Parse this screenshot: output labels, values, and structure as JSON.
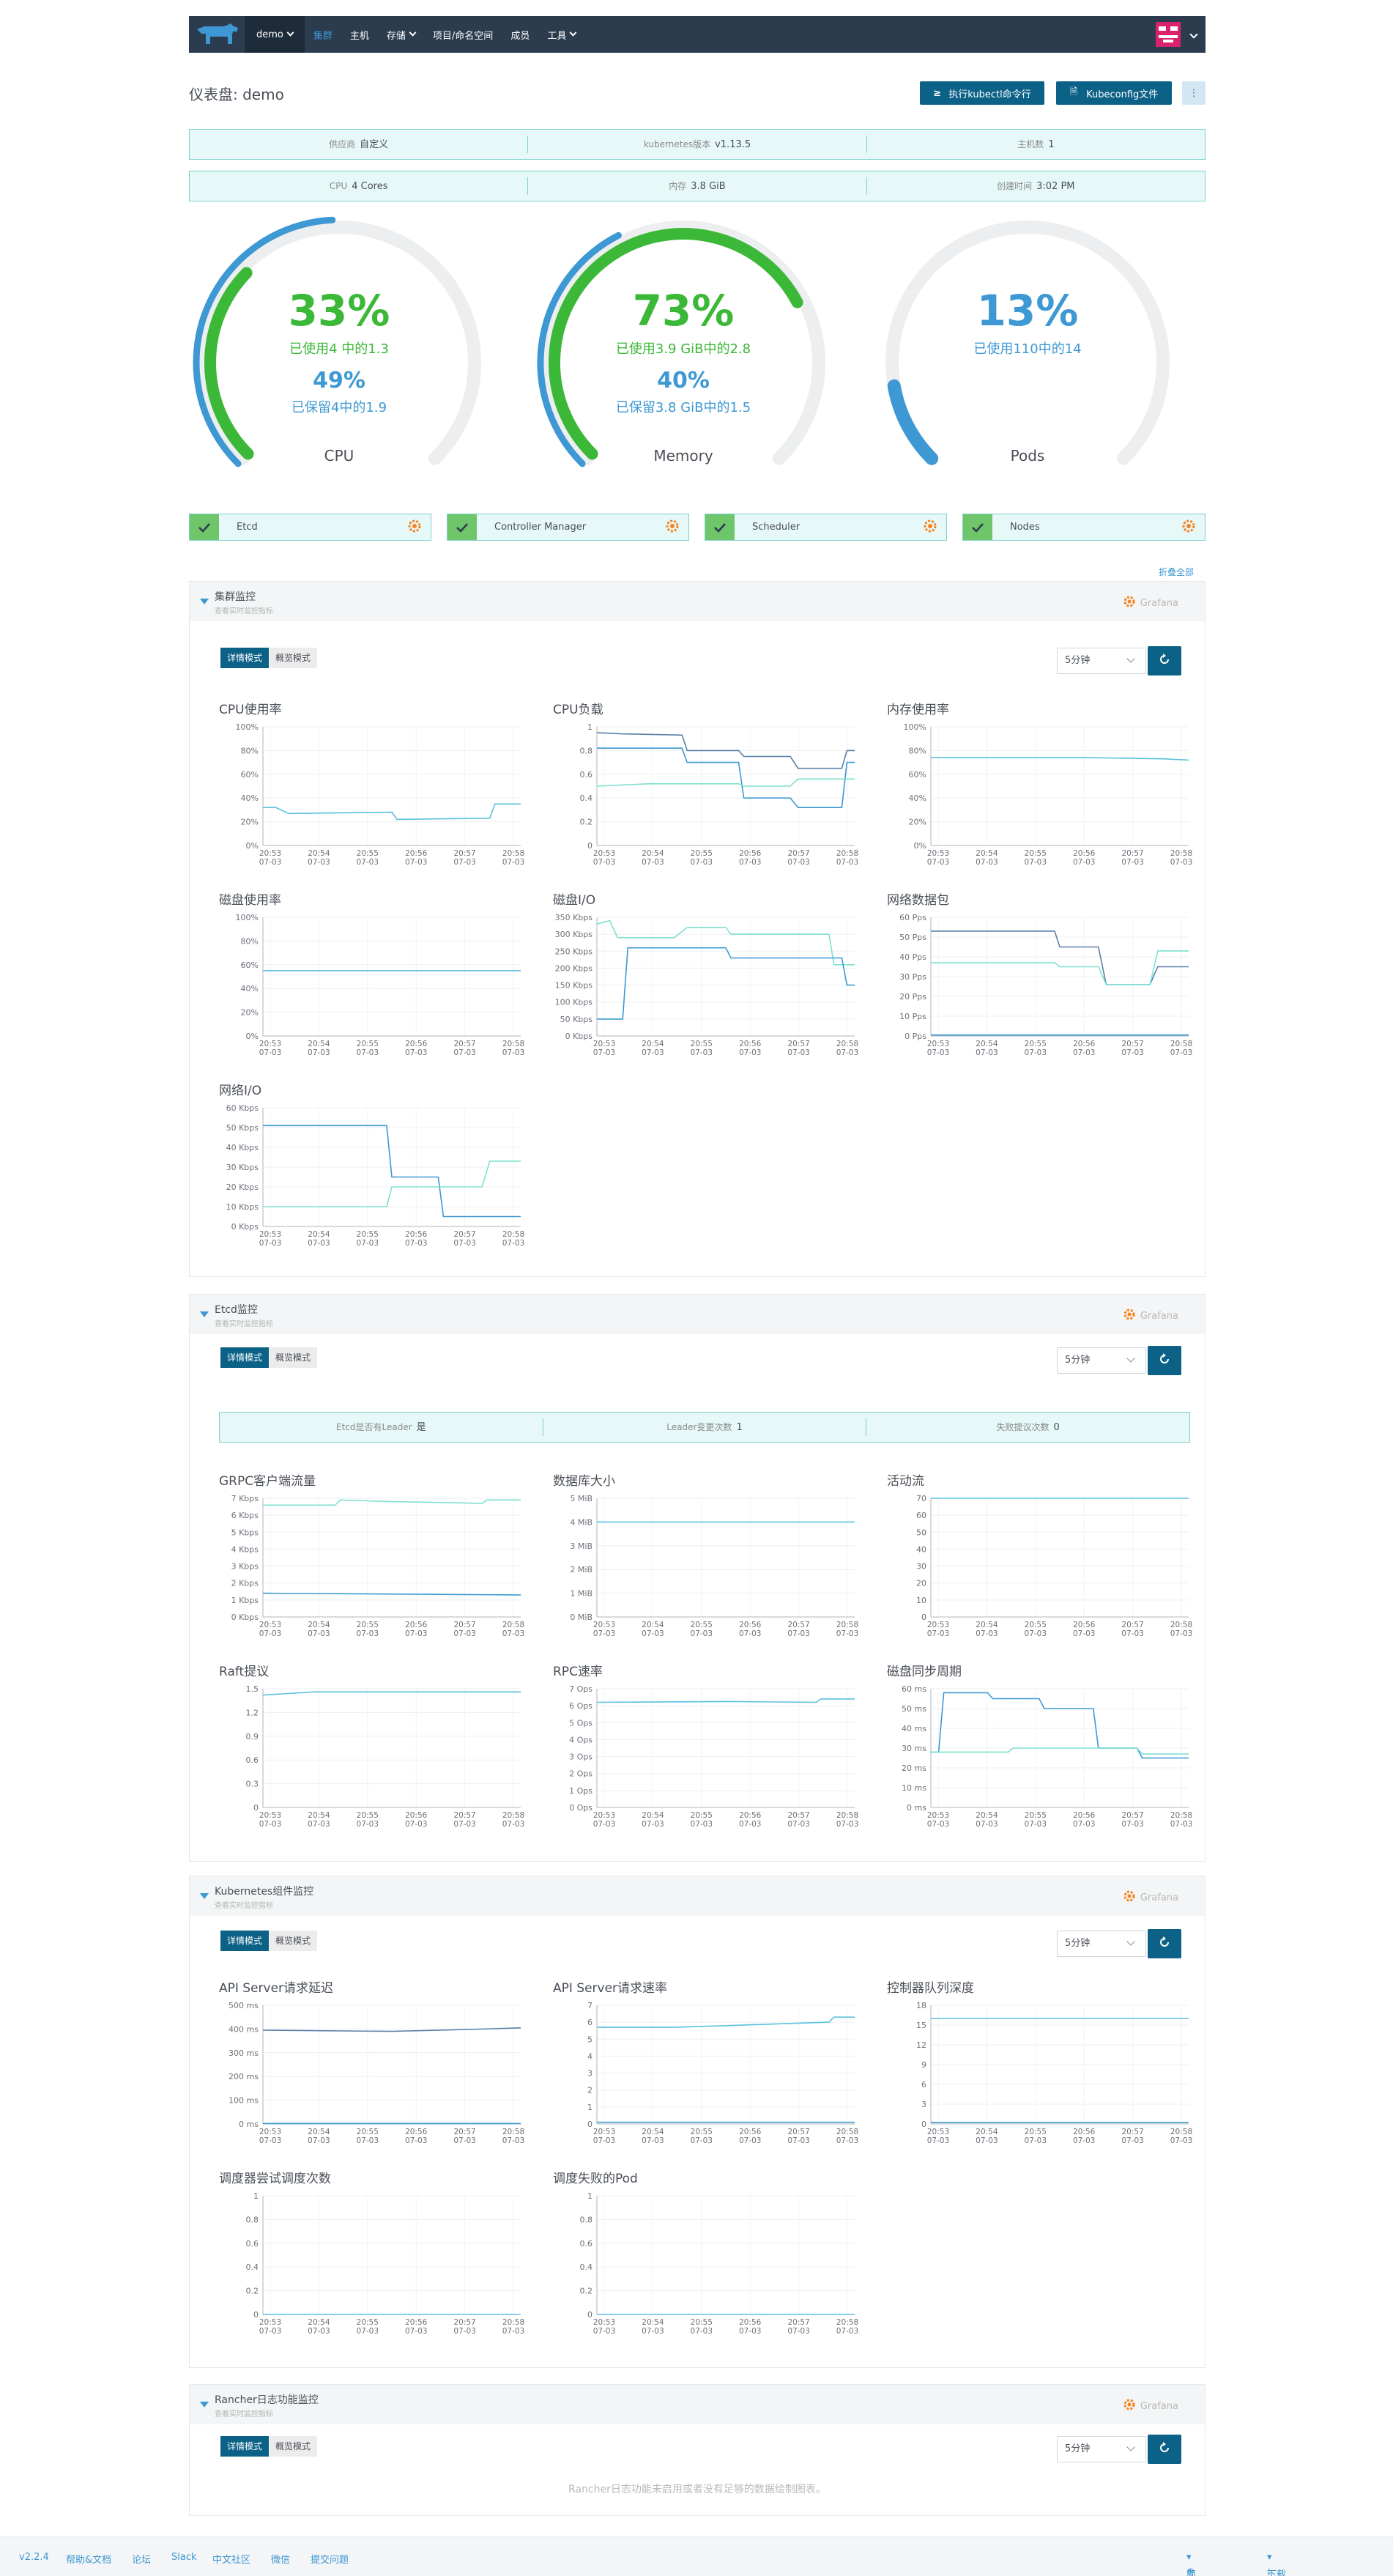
{
  "nav": {
    "project": "demo",
    "items": [
      {
        "label": "集群",
        "active": true
      },
      {
        "label": "主机"
      },
      {
        "label": "存储",
        "dropdown": true
      },
      {
        "label": "项目/命名空间"
      },
      {
        "label": "成员"
      },
      {
        "label": "工具",
        "dropdown": true
      }
    ]
  },
  "header": {
    "title": "仪表盘: demo",
    "kubectl_btn": "执行kubectl命令行",
    "kubeconfig_btn": "Kubeconfig文件",
    "more_btn": "⋮"
  },
  "info_row1": [
    {
      "label": "供应商",
      "value": "自定义"
    },
    {
      "label": "kubernetes版本",
      "value": "v1.13.5"
    },
    {
      "label": "主机数",
      "value": "1"
    }
  ],
  "info_row2": [
    {
      "label": "CPU",
      "value": "4 Cores"
    },
    {
      "label": "内存",
      "value": "3.8 GiB"
    },
    {
      "label": "创建时间",
      "value": "3:02 PM"
    }
  ],
  "gauges": [
    {
      "name": "CPU",
      "pct": "33%",
      "used": "已使用4 中的1.3",
      "reserved_pct": "49%",
      "reserved": "已保留4中的1.9",
      "used_value": 0.33,
      "reserved_value": 0.49
    },
    {
      "name": "Memory",
      "pct": "73%",
      "used": "已使用3.9 GiB中的2.8",
      "reserved_pct": "40%",
      "reserved": "已保留3.8 GiB中的1.5",
      "used_value": 0.73,
      "reserved_value": 0.4
    },
    {
      "name": "Pods",
      "pct": "13%",
      "used": "已使用110中的14",
      "used_value": 0.13
    }
  ],
  "components": [
    "Etcd",
    "Controller Manager",
    "Scheduler",
    "Nodes"
  ],
  "collapse_all": "折叠全部",
  "common": {
    "grafana": "Grafana",
    "detail_mode": "详情模式",
    "overview_mode": "概览模式",
    "interval": "5分钟",
    "subtitle": "查看实时监控指标"
  },
  "time_ticks": [
    "20:53\n07-03",
    "20:54\n07-03",
    "20:55\n07-03",
    "20:56\n07-03",
    "20:57\n07-03",
    "20:58\n07-03"
  ],
  "sections": {
    "cluster": {
      "title": "集群监控"
    },
    "etcd": {
      "title": "Etcd监控",
      "stats": [
        {
          "label": "Etcd是否有Leader",
          "value": "是"
        },
        {
          "label": "Leader变更次数",
          "value": "1"
        },
        {
          "label": "失败提议次数",
          "value": "0"
        }
      ]
    },
    "k8s": {
      "title": "Kubernetes组件监控"
    },
    "logging": {
      "title": "Rancher日志功能监控",
      "empty": "Rancher日志功能未启用或者没有足够的数据绘制图表。"
    }
  },
  "chart_data": [
    {
      "type": "line",
      "title": "CPU使用率",
      "yticks": [
        "100%",
        "80%",
        "60%",
        "40%",
        "20%",
        "0%"
      ],
      "ylim": [
        0,
        100
      ],
      "series": [
        {
          "color": "#5bc0de",
          "values": [
            [
              0,
              32
            ],
            [
              0.05,
              32
            ],
            [
              0.1,
              27
            ],
            [
              0.5,
              28
            ],
            [
              0.52,
              22
            ],
            [
              0.88,
              23
            ],
            [
              0.9,
              35
            ],
            [
              1,
              35
            ]
          ]
        }
      ]
    },
    {
      "type": "line",
      "title": "CPU负载",
      "yticks": [
        "1",
        "0.8",
        "0.6",
        "0.4",
        "0.2",
        "0"
      ],
      "ylim": [
        0,
        1
      ],
      "series": [
        {
          "color": "#5b7fa8",
          "values": [
            [
              0,
              0.95
            ],
            [
              0.1,
              0.94
            ],
            [
              0.33,
              0.93
            ],
            [
              0.35,
              0.8
            ],
            [
              0.55,
              0.8
            ],
            [
              0.57,
              0.75
            ],
            [
              0.75,
              0.75
            ],
            [
              0.78,
              0.65
            ],
            [
              0.95,
              0.65
            ],
            [
              0.97,
              0.8
            ],
            [
              1,
              0.8
            ]
          ]
        },
        {
          "color": "#3d98d3",
          "values": [
            [
              0,
              0.82
            ],
            [
              0.33,
              0.82
            ],
            [
              0.35,
              0.7
            ],
            [
              0.55,
              0.7
            ],
            [
              0.57,
              0.4
            ],
            [
              0.75,
              0.4
            ],
            [
              0.78,
              0.32
            ],
            [
              0.95,
              0.32
            ],
            [
              0.97,
              0.7
            ],
            [
              1,
              0.7
            ]
          ]
        },
        {
          "color": "#7fe0d0",
          "values": [
            [
              0,
              0.5
            ],
            [
              0.2,
              0.52
            ],
            [
              0.55,
              0.52
            ],
            [
              0.57,
              0.5
            ],
            [
              0.75,
              0.5
            ],
            [
              0.78,
              0.56
            ],
            [
              1,
              0.56
            ]
          ]
        }
      ]
    },
    {
      "type": "line",
      "title": "内存使用率",
      "yticks": [
        "100%",
        "80%",
        "60%",
        "40%",
        "20%",
        "0%"
      ],
      "ylim": [
        0,
        100
      ],
      "series": [
        {
          "color": "#5bc0de",
          "values": [
            [
              0,
              74
            ],
            [
              0.6,
              74
            ],
            [
              0.9,
              73
            ],
            [
              1,
              72
            ]
          ]
        }
      ]
    },
    {
      "type": "line",
      "title": "磁盘使用率",
      "yticks": [
        "100%",
        "80%",
        "60%",
        "40%",
        "20%",
        "0%"
      ],
      "ylim": [
        0,
        100
      ],
      "series": [
        {
          "color": "#5bc0de",
          "values": [
            [
              0,
              55
            ],
            [
              1,
              55
            ]
          ]
        }
      ]
    },
    {
      "type": "line",
      "title": "磁盘I/O",
      "yticks": [
        "350 Kbps",
        "300 Kbps",
        "250 Kbps",
        "200 Kbps",
        "150 Kbps",
        "100 Kbps",
        "50 Kbps",
        "0 Kbps"
      ],
      "ylim": [
        0,
        350
      ],
      "series": [
        {
          "color": "#7fe0d0",
          "values": [
            [
              0,
              330
            ],
            [
              0.05,
              340
            ],
            [
              0.08,
              290
            ],
            [
              0.3,
              290
            ],
            [
              0.35,
              320
            ],
            [
              0.5,
              320
            ],
            [
              0.52,
              300
            ],
            [
              0.9,
              300
            ],
            [
              0.92,
              210
            ],
            [
              1,
              210
            ]
          ]
        },
        {
          "color": "#3d98d3",
          "values": [
            [
              0,
              50
            ],
            [
              0.1,
              50
            ],
            [
              0.12,
              260
            ],
            [
              0.5,
              260
            ],
            [
              0.52,
              230
            ],
            [
              0.95,
              230
            ],
            [
              0.97,
              150
            ],
            [
              1,
              150
            ]
          ]
        }
      ]
    },
    {
      "type": "line",
      "title": "网络数据包",
      "yticks": [
        "60 Pps",
        "50 Pps",
        "40 Pps",
        "30 Pps",
        "20 Pps",
        "10 Pps",
        "0 Pps"
      ],
      "ylim": [
        0,
        60
      ],
      "series": [
        {
          "color": "#5b7fa8",
          "values": [
            [
              0,
              53
            ],
            [
              0.48,
              53
            ],
            [
              0.5,
              45
            ],
            [
              0.65,
              45
            ],
            [
              0.68,
              26
            ],
            [
              0.85,
              26
            ],
            [
              0.88,
              35
            ],
            [
              1,
              35
            ]
          ]
        },
        {
          "color": "#7fe0d0",
          "values": [
            [
              0,
              37
            ],
            [
              0.48,
              37
            ],
            [
              0.5,
              35
            ],
            [
              0.65,
              35
            ],
            [
              0.68,
              26
            ],
            [
              0.85,
              26
            ],
            [
              0.88,
              43
            ],
            [
              1,
              43
            ]
          ]
        },
        {
          "color": "#3d98d3",
          "values": [
            [
              0,
              0.5
            ],
            [
              1,
              0.5
            ]
          ]
        }
      ]
    },
    {
      "type": "line",
      "title": "网络I/O",
      "yticks": [
        "60 Kbps",
        "50 Kbps",
        "40 Kbps",
        "30 Kbps",
        "20 Kbps",
        "10 Kbps",
        "0 Kbps"
      ],
      "ylim": [
        0,
        60
      ],
      "series": [
        {
          "color": "#3d98d3",
          "values": [
            [
              0,
              51
            ],
            [
              0.48,
              51
            ],
            [
              0.5,
              25
            ],
            [
              0.68,
              25
            ],
            [
              0.7,
              5
            ],
            [
              1,
              5
            ]
          ]
        },
        {
          "color": "#7fe0d0",
          "values": [
            [
              0,
              10
            ],
            [
              0.48,
              10
            ],
            [
              0.5,
              20
            ],
            [
              0.85,
              20
            ],
            [
              0.88,
              33
            ],
            [
              1,
              33
            ]
          ]
        }
      ]
    },
    {
      "type": "line",
      "title": "GRPC客户端流量",
      "yticks": [
        "7 Kbps",
        "6 Kbps",
        "5 Kbps",
        "4 Kbps",
        "3 Kbps",
        "2 Kbps",
        "1 Kbps",
        "0 Kbps"
      ],
      "ylim": [
        0,
        7
      ],
      "series": [
        {
          "color": "#7fe0d0",
          "values": [
            [
              0,
              6.6
            ],
            [
              0.28,
              6.6
            ],
            [
              0.3,
              6.9
            ],
            [
              0.5,
              6.8
            ],
            [
              0.85,
              6.7
            ],
            [
              0.87,
              6.9
            ],
            [
              1,
              6.9
            ]
          ]
        },
        {
          "color": "#3d98d3",
          "values": [
            [
              0,
              1.4
            ],
            [
              1,
              1.3
            ]
          ]
        }
      ]
    },
    {
      "type": "line",
      "title": "数据库大小",
      "yticks": [
        "5 MiB",
        "4 MiB",
        "3 MiB",
        "2 MiB",
        "1 MiB",
        "0 MiB"
      ],
      "ylim": [
        0,
        5
      ],
      "series": [
        {
          "color": "#5bc0de",
          "values": [
            [
              0,
              4
            ],
            [
              1,
              4
            ]
          ]
        }
      ]
    },
    {
      "type": "line",
      "title": "活动流",
      "yticks": [
        "70",
        "60",
        "50",
        "40",
        "30",
        "20",
        "10",
        "0"
      ],
      "ylim": [
        0,
        70
      ],
      "series": [
        {
          "color": "#5bc0de",
          "values": [
            [
              0,
              70
            ],
            [
              1,
              70
            ]
          ]
        }
      ]
    },
    {
      "type": "line",
      "title": "Raft提议",
      "yticks": [
        "1.5",
        "1.2",
        "0.9",
        "0.6",
        "0.3",
        "0"
      ],
      "ylim": [
        0,
        1.5
      ],
      "series": [
        {
          "color": "#5bc0de",
          "values": [
            [
              0,
              1.42
            ],
            [
              0.2,
              1.46
            ],
            [
              1,
              1.46
            ]
          ]
        }
      ]
    },
    {
      "type": "line",
      "title": "RPC速率",
      "yticks": [
        "7 Ops",
        "6 Ops",
        "5 Ops",
        "4 Ops",
        "3 Ops",
        "2 Ops",
        "1 Ops",
        "0 Ops"
      ],
      "ylim": [
        0,
        7
      ],
      "series": [
        {
          "color": "#5bc0de",
          "values": [
            [
              0,
              6.2
            ],
            [
              0.5,
              6.25
            ],
            [
              0.85,
              6.2
            ],
            [
              0.87,
              6.4
            ],
            [
              1,
              6.4
            ]
          ]
        }
      ]
    },
    {
      "type": "line",
      "title": "磁盘同步周期",
      "yticks": [
        "60 ms",
        "50 ms",
        "40 ms",
        "30 ms",
        "20 ms",
        "10 ms",
        "0 ms"
      ],
      "ylim": [
        0,
        60
      ],
      "series": [
        {
          "color": "#3d98d3",
          "values": [
            [
              0,
              28
            ],
            [
              0.03,
              28
            ],
            [
              0.05,
              58
            ],
            [
              0.22,
              58
            ],
            [
              0.24,
              55
            ],
            [
              0.42,
              55
            ],
            [
              0.44,
              50
            ],
            [
              0.63,
              50
            ],
            [
              0.65,
              30
            ],
            [
              0.8,
              30
            ],
            [
              0.82,
              25
            ],
            [
              1,
              25
            ]
          ]
        },
        {
          "color": "#7fe0d0",
          "values": [
            [
              0,
              28
            ],
            [
              0.3,
              28
            ],
            [
              0.32,
              30
            ],
            [
              0.8,
              30
            ],
            [
              0.82,
              27
            ],
            [
              1,
              27
            ]
          ]
        }
      ]
    },
    {
      "type": "line",
      "title": "API Server请求延迟",
      "yticks": [
        "500 ms",
        "400 ms",
        "300 ms",
        "200 ms",
        "100 ms",
        "0 ms"
      ],
      "ylim": [
        0,
        500
      ],
      "series": [
        {
          "color": "#5b7fa8",
          "values": [
            [
              0,
              395
            ],
            [
              0.5,
              390
            ],
            [
              0.8,
              398
            ],
            [
              1,
              405
            ]
          ]
        },
        {
          "color": "#3d98d3",
          "values": [
            [
              0,
              2
            ],
            [
              1,
              2
            ]
          ]
        }
      ]
    },
    {
      "type": "line",
      "title": "API Server请求速率",
      "yticks": [
        "7",
        "6",
        "5",
        "4",
        "3",
        "2",
        "1",
        "0"
      ],
      "ylim": [
        0,
        7
      ],
      "series": [
        {
          "color": "#5bc0de",
          "values": [
            [
              0,
              5.7
            ],
            [
              0.3,
              5.7
            ],
            [
              0.5,
              5.8
            ],
            [
              0.9,
              6
            ],
            [
              0.92,
              6.3
            ],
            [
              1,
              6.3
            ]
          ]
        },
        {
          "color": "#3d98d3",
          "values": [
            [
              0,
              0.1
            ],
            [
              1,
              0.1
            ]
          ]
        }
      ]
    },
    {
      "type": "line",
      "title": "控制器队列深度",
      "yticks": [
        "18",
        "15",
        "12",
        "9",
        "6",
        "3",
        "0"
      ],
      "ylim": [
        0,
        18
      ],
      "series": [
        {
          "color": "#5bc0de",
          "values": [
            [
              0,
              16
            ],
            [
              1,
              16
            ]
          ]
        },
        {
          "color": "#3d98d3",
          "values": [
            [
              0,
              0.2
            ],
            [
              1,
              0.2
            ]
          ]
        }
      ]
    },
    {
      "type": "line",
      "title": "调度器尝试调度次数",
      "yticks": [
        "1",
        "0.8",
        "0.6",
        "0.4",
        "0.2",
        "0"
      ],
      "ylim": [
        0,
        1
      ],
      "series": [
        {
          "color": "#5bc0de",
          "values": [
            [
              0,
              0
            ],
            [
              1,
              0
            ]
          ]
        }
      ]
    },
    {
      "type": "line",
      "title": "调度失败的Pod",
      "yticks": [
        "1",
        "0.8",
        "0.6",
        "0.4",
        "0.2",
        "0"
      ],
      "ylim": [
        0,
        1
      ],
      "series": [
        {
          "color": "#5bc0de",
          "values": [
            [
              0,
              0
            ],
            [
              1,
              0
            ]
          ]
        }
      ]
    }
  ],
  "footer": {
    "version": "v2.2.4",
    "links": [
      "帮助&文档",
      "论坛",
      "Slack",
      "中文社区",
      "微信",
      "提交问题"
    ],
    "lang": "简体中文",
    "download": "下载Rancher CLI"
  }
}
